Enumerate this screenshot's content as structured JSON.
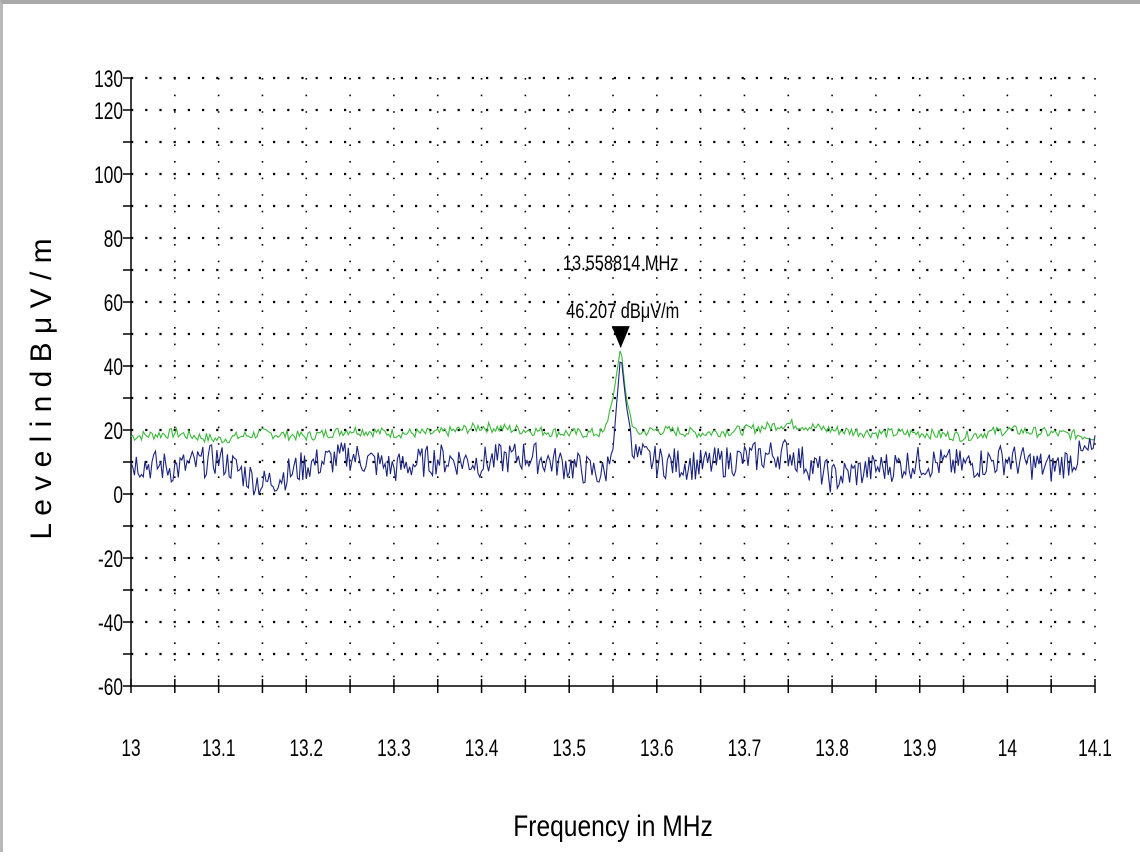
{
  "chart_data": {
    "type": "line",
    "title": "",
    "xlabel": "Frequency in MHz",
    "ylabel": "L e v e l  i n  d B μ V / m",
    "xlim": [
      13,
      14.1
    ],
    "ylim": [
      -60,
      130
    ],
    "x_ticks": [
      13,
      13.1,
      13.2,
      13.3,
      13.4,
      13.5,
      13.6,
      13.7,
      13.8,
      13.9,
      14,
      14.1
    ],
    "x_tick_labels": [
      "13",
      "13.1",
      "13.2",
      "13.3",
      "13.4",
      "13.5",
      "13.6",
      "13.7",
      "13.8",
      "13.9",
      "14",
      "14.1"
    ],
    "y_ticks": [
      -60,
      -40,
      -20,
      0,
      20,
      40,
      60,
      80,
      100,
      120,
      130
    ],
    "y_tick_labels": [
      "-60",
      "-40",
      "-20",
      "0",
      "20",
      "40",
      "60",
      "80",
      "100",
      "120",
      "130"
    ],
    "grid": "dotted",
    "series": [
      {
        "color": "#3cb83c",
        "x": [
          13.0,
          13.05,
          13.1,
          13.15,
          13.2,
          13.25,
          13.3,
          13.35,
          13.4,
          13.45,
          13.5,
          13.54,
          13.55,
          13.558814,
          13.565,
          13.575,
          13.6,
          13.65,
          13.7,
          13.75,
          13.8,
          13.85,
          13.9,
          13.95,
          14.0,
          14.05,
          14.1
        ],
        "y": [
          18,
          19,
          17,
          19,
          18,
          20,
          19,
          19,
          21,
          20,
          19,
          19,
          30,
          46.207,
          30,
          19,
          20,
          19,
          20,
          22,
          20,
          19,
          19,
          18,
          20,
          19,
          18
        ]
      },
      {
        "color": "#1a237e",
        "x": [
          13.0,
          13.05,
          13.1,
          13.15,
          13.2,
          13.25,
          13.3,
          13.35,
          13.4,
          13.45,
          13.5,
          13.54,
          13.55,
          13.558814,
          13.565,
          13.575,
          13.6,
          13.65,
          13.7,
          13.75,
          13.8,
          13.85,
          13.9,
          13.95,
          14.0,
          14.05,
          14.1
        ],
        "y": [
          10,
          8,
          11,
          3,
          9,
          12,
          8,
          11,
          10,
          12,
          9,
          6,
          14,
          44,
          28,
          12,
          10,
          9,
          11,
          13,
          5,
          8,
          10,
          9,
          11,
          8,
          14
        ]
      }
    ],
    "marker": {
      "x": 13.558814,
      "y": 46.207,
      "freq_label": "13.558814 MHz",
      "level_label": "46.207 dBμV/m"
    }
  }
}
